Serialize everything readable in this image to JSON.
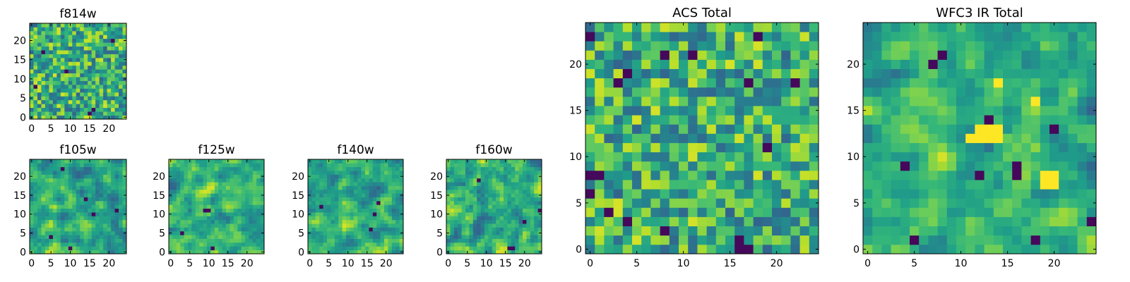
{
  "chart_data": [
    {
      "type": "heatmap",
      "title": "f814w",
      "xlabel": "",
      "ylabel": "",
      "colormap": "viridis",
      "grid_size": 25,
      "xlim": [
        0,
        24
      ],
      "ylim": [
        0,
        24
      ],
      "xticks": [
        0,
        5,
        10,
        15,
        20
      ],
      "yticks": [
        0,
        5,
        10,
        15,
        20
      ],
      "xtick_labels": [
        "0",
        "5",
        "10",
        "15",
        "20"
      ],
      "ytick_labels": [
        "0",
        "5",
        "10",
        "15",
        "20"
      ],
      "seed": 814,
      "smoothing": 0,
      "dark_pixels": [
        [
          15,
          1
        ],
        [
          16,
          2
        ],
        [
          3,
          17
        ],
        [
          9,
          12
        ],
        [
          21,
          20
        ],
        [
          1,
          8
        ]
      ],
      "bright_patches": []
    },
    {
      "type": "heatmap",
      "title": "f105w",
      "xlabel": "",
      "ylabel": "",
      "colormap": "viridis",
      "grid_size": 25,
      "xlim": [
        0,
        24
      ],
      "ylim": [
        0,
        24
      ],
      "xticks": [
        0,
        5,
        10,
        15,
        20
      ],
      "yticks": [
        0,
        5,
        10,
        15,
        20
      ],
      "xtick_labels": [
        "0",
        "5",
        "10",
        "15",
        "20"
      ],
      "ytick_labels": [
        "0",
        "5",
        "10",
        "15",
        "20"
      ],
      "seed": 105,
      "smoothing": 1,
      "dark_pixels": [
        [
          5,
          4
        ],
        [
          10,
          1
        ],
        [
          14,
          14
        ],
        [
          16,
          10
        ],
        [
          8,
          22
        ],
        [
          22,
          11
        ]
      ],
      "bright_patches": []
    },
    {
      "type": "heatmap",
      "title": "f125w",
      "xlabel": "",
      "ylabel": "",
      "colormap": "viridis",
      "grid_size": 25,
      "xlim": [
        0,
        24
      ],
      "ylim": [
        0,
        24
      ],
      "xticks": [
        0,
        5,
        10,
        15,
        20
      ],
      "yticks": [
        0,
        5,
        10,
        15,
        20
      ],
      "xtick_labels": [
        "0",
        "5",
        "10",
        "15",
        "20"
      ],
      "ytick_labels": [
        "0",
        "5",
        "10",
        "15",
        "20"
      ],
      "seed": 125,
      "smoothing": 1,
      "dark_pixels": [
        [
          9,
          11
        ],
        [
          10,
          11
        ],
        [
          11,
          1
        ],
        [
          3,
          5
        ]
      ],
      "bright_patches": []
    },
    {
      "type": "heatmap",
      "title": "f140w",
      "xlabel": "",
      "ylabel": "",
      "colormap": "viridis",
      "grid_size": 25,
      "xlim": [
        0,
        24
      ],
      "ylim": [
        0,
        24
      ],
      "xticks": [
        0,
        5,
        10,
        15,
        20
      ],
      "yticks": [
        0,
        5,
        10,
        15,
        20
      ],
      "xtick_labels": [
        "0",
        "5",
        "10",
        "15",
        "20"
      ],
      "ytick_labels": [
        "0",
        "5",
        "10",
        "15",
        "20"
      ],
      "seed": 140,
      "smoothing": 1,
      "dark_pixels": [
        [
          17,
          10
        ],
        [
          18,
          13
        ],
        [
          3,
          12
        ],
        [
          16,
          6
        ]
      ],
      "bright_patches": []
    },
    {
      "type": "heatmap",
      "title": "f160w",
      "xlabel": "",
      "ylabel": "",
      "colormap": "viridis",
      "grid_size": 25,
      "xlim": [
        0,
        24
      ],
      "ylim": [
        0,
        24
      ],
      "xticks": [
        0,
        5,
        10,
        15,
        20
      ],
      "yticks": [
        0,
        5,
        10,
        15,
        20
      ],
      "xtick_labels": [
        "0",
        "5",
        "10",
        "15",
        "20"
      ],
      "ytick_labels": [
        "0",
        "5",
        "10",
        "15",
        "20"
      ],
      "seed": 160,
      "smoothing": 1,
      "dark_pixels": [
        [
          16,
          1
        ],
        [
          17,
          1
        ],
        [
          24,
          11
        ],
        [
          20,
          8
        ],
        [
          8,
          19
        ]
      ],
      "bright_patches": []
    },
    {
      "type": "heatmap",
      "title": "ACS Total",
      "xlabel": "",
      "ylabel": "",
      "colormap": "viridis",
      "grid_size": 25,
      "xlim": [
        0,
        24
      ],
      "ylim": [
        0,
        24
      ],
      "xticks": [
        0,
        5,
        10,
        15,
        20
      ],
      "yticks": [
        0,
        5,
        10,
        15,
        20
      ],
      "xtick_labels": [
        "0",
        "5",
        "10",
        "15",
        "20"
      ],
      "ytick_labels": [
        "0",
        "5",
        "10",
        "15",
        "20"
      ],
      "seed": 1,
      "smoothing": 0,
      "dark_pixels": [
        [
          0,
          23
        ],
        [
          0,
          8
        ],
        [
          1,
          8
        ],
        [
          8,
          21
        ],
        [
          11,
          21
        ],
        [
          18,
          23
        ],
        [
          4,
          19
        ],
        [
          3,
          18
        ],
        [
          17,
          18
        ],
        [
          22,
          18
        ],
        [
          19,
          11
        ],
        [
          8,
          2
        ],
        [
          16,
          1
        ],
        [
          16,
          0
        ],
        [
          17,
          0
        ],
        [
          2,
          4
        ],
        [
          4,
          3
        ],
        [
          0,
          6
        ]
      ],
      "bright_patches": []
    },
    {
      "type": "heatmap",
      "title": "WFC3 IR Total",
      "xlabel": "",
      "ylabel": "",
      "colormap": "viridis",
      "grid_size": 25,
      "xlim": [
        0,
        24
      ],
      "ylim": [
        0,
        24
      ],
      "xticks": [
        0,
        5,
        10,
        15,
        20
      ],
      "yticks": [
        0,
        5,
        10,
        15,
        20
      ],
      "xtick_labels": [
        "0",
        "5",
        "10",
        "15",
        "20"
      ],
      "ytick_labels": [
        "0",
        "5",
        "10",
        "15",
        "20"
      ],
      "seed": 2,
      "smoothing": 1,
      "dark_pixels": [
        [
          8,
          21
        ],
        [
          7,
          20
        ],
        [
          13,
          14
        ],
        [
          20,
          13
        ],
        [
          4,
          9
        ],
        [
          16,
          9
        ],
        [
          16,
          8
        ],
        [
          12,
          8
        ],
        [
          5,
          1
        ],
        [
          18,
          1
        ],
        [
          24,
          3
        ]
      ],
      "bright_patches": [
        [
          12,
          12
        ],
        [
          13,
          12
        ],
        [
          14,
          12
        ],
        [
          12,
          13
        ],
        [
          13,
          13
        ],
        [
          14,
          13
        ],
        [
          11,
          12
        ],
        [
          19,
          8
        ],
        [
          20,
          8
        ],
        [
          19,
          7
        ],
        [
          20,
          7
        ],
        [
          18,
          16
        ],
        [
          14,
          18
        ]
      ]
    }
  ]
}
